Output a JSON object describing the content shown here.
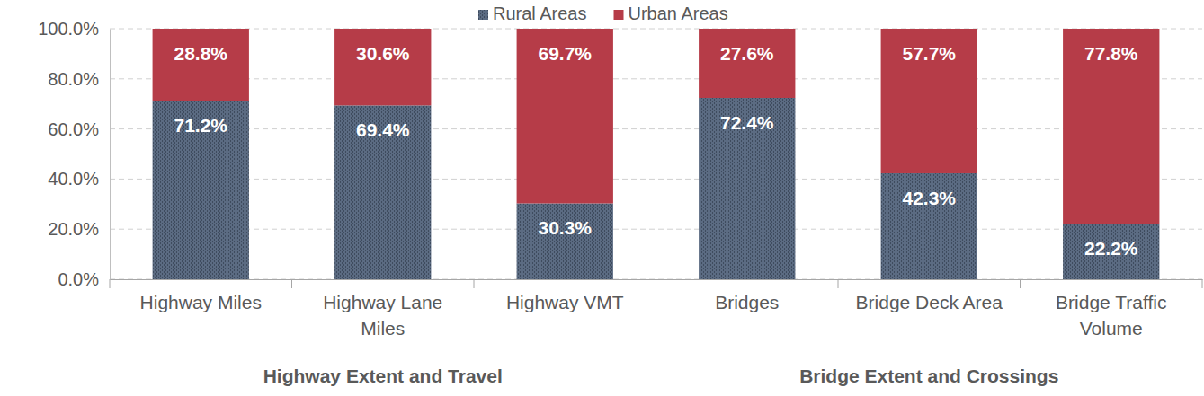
{
  "chart_data": {
    "type": "bar",
    "stacked": true,
    "data_labels": true,
    "grid": true,
    "legend": "top",
    "categories": [
      "Highway Miles",
      "Highway Lane Miles",
      "Highway VMT",
      "Bridges",
      "Bridge Deck Area",
      "Bridge Traffic Volume"
    ],
    "series": [
      {
        "name": "Rural Areas",
        "color": "#5b6b82",
        "values": [
          71.2,
          69.4,
          30.3,
          72.4,
          42.3,
          22.2
        ],
        "value_labels": [
          "71.2%",
          "69.4%",
          "30.3%",
          "72.4%",
          "42.3%",
          "22.2%"
        ]
      },
      {
        "name": "Urban Areas",
        "color": "#b63c48",
        "values": [
          28.8,
          30.6,
          69.7,
          27.6,
          57.7,
          77.8
        ],
        "value_labels": [
          "28.8%",
          "30.6%",
          "69.7%",
          "27.6%",
          "57.7%",
          "77.8%"
        ]
      }
    ],
    "ylim": [
      0,
      100
    ],
    "yticks": [
      {
        "value": 0,
        "label": "0.0%"
      },
      {
        "value": 20,
        "label": "20.0%"
      },
      {
        "value": 40,
        "label": "40.0%"
      },
      {
        "value": 60,
        "label": "60.0%"
      },
      {
        "value": 80,
        "label": "80.0%"
      },
      {
        "value": 100,
        "label": "100.0%"
      }
    ],
    "annotations": [
      {
        "text": "Highway Extent and Travel",
        "categories": [
          "Highway Miles",
          "Highway Lane Miles",
          "Highway VMT"
        ]
      },
      {
        "text": "Bridge Extent and Crossings",
        "categories": [
          "Bridges",
          "Bridge Deck Area",
          "Bridge Traffic Volume"
        ]
      }
    ]
  }
}
